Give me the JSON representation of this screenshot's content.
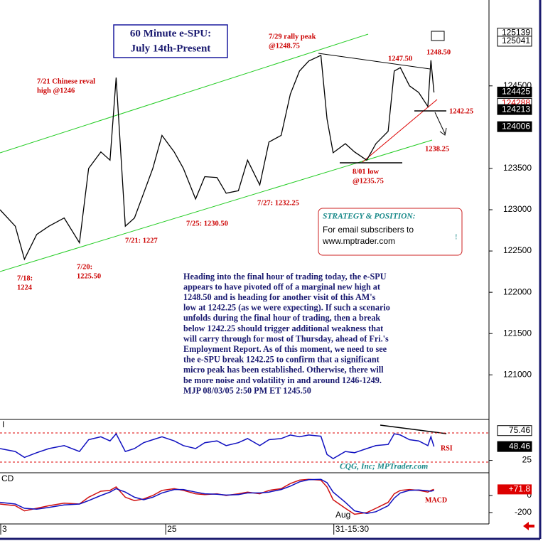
{
  "chart_data": [
    {
      "type": "line",
      "title": "60 Minute e-SPU:",
      "subtitle": "July 14th-Present",
      "x": [
        0,
        5,
        8,
        12,
        16,
        21,
        26,
        29,
        33,
        36,
        38,
        41,
        44,
        47,
        50,
        53,
        57,
        60,
        64,
        67,
        71,
        74,
        78,
        81,
        85,
        88,
        92,
        95,
        98,
        101,
        105,
        107,
        109,
        113,
        116,
        120,
        123,
        127,
        129,
        131,
        134,
        137,
        140,
        141,
        142
      ],
      "xlim": [
        0,
        160
      ],
      "series": [
        {
          "color": "#000000",
          "values": [
            123000,
            122800,
            122400,
            122700,
            122800,
            122900,
            122600,
            123500,
            123700,
            123600,
            124600,
            122800,
            122900,
            123200,
            123500,
            123900,
            123700,
            123500,
            123130,
            123400,
            123390,
            123200,
            123230,
            123600,
            123300,
            123820,
            123900,
            124400,
            124680,
            124800,
            124870,
            124100,
            123690,
            123800,
            123700,
            123600,
            123800,
            123950,
            124680,
            124720,
            124500,
            124420,
            124250,
            124810,
            124420
          ]
        }
      ],
      "ylim": [
        120460,
        125540
      ],
      "yticks": [
        121000,
        121500,
        122000,
        122500,
        123000,
        123500,
        124500
      ],
      "price_markers": [
        125139,
        125041,
        124425,
        124288,
        124213,
        124006
      ],
      "price_marker_colors": [
        "#000000",
        "#000000",
        "#ffffff",
        "#e00000",
        "#ffffff",
        "#ffffff"
      ],
      "annotations": [
        [
          "7/21 Chinese reval",
          "high @1246"
        ],
        [
          "7/29 rally peak",
          "@1248.75"
        ],
        [
          "1247.50"
        ],
        [
          "1248.50"
        ],
        [
          "1242.25"
        ],
        [
          "1238.25"
        ],
        [
          "8/01 low",
          "@1235.75"
        ],
        [
          "7/27: 1232.25"
        ],
        [
          "7/25: 1230.50"
        ],
        [
          "7/21: 1227"
        ],
        [
          "7/20:",
          "1225.50"
        ],
        [
          "7/18:",
          "1224"
        ]
      ],
      "commentary": [
        "Heading into the final hour of trading today, the e-SPU",
        "appears to have pivoted off of a marginal new high at",
        "1248.50 and is heading for another visit of this AM's",
        "low at 1242.25 (as we were expecting). If such a scenario",
        "unfolds during the final hour of trading, then a break",
        "below 1242.25 should trigger additional weakness that",
        "will carry through for most of Thursday, ahead of Fri.'s",
        "Employment Report. As of this moment, we need to see",
        "the e-SPU break 1242.25 to confirm that a significant",
        "micro peak has been established. Otherwise, there will",
        "be more noise and volatility in and around 1246-1249.",
        "MJP 08/03/05 2:50 PM ET 1245.50"
      ],
      "strategy": {
        "title": "STRATEGY & POSITION:",
        "lines": [
          "For email subscribers to",
          "www.mptrader.com"
        ],
        "mark": "!"
      }
    },
    {
      "type": "line",
      "panel_label": "I",
      "label": "RSI",
      "credit": "CQG, Inc; MPTrader.com",
      "x": [
        0,
        5,
        8,
        12,
        16,
        21,
        26,
        29,
        33,
        36,
        38,
        41,
        44,
        47,
        50,
        53,
        57,
        60,
        64,
        67,
        71,
        74,
        78,
        81,
        85,
        88,
        92,
        95,
        98,
        101,
        105,
        107,
        109,
        113,
        116,
        120,
        123,
        127,
        129,
        131,
        134,
        137,
        140,
        141,
        142
      ],
      "xlim": [
        0,
        160
      ],
      "series": [
        {
          "color": "#1010c0",
          "values": [
            45,
            40,
            30,
            38,
            45,
            50,
            40,
            60,
            65,
            58,
            70,
            40,
            45,
            55,
            60,
            65,
            58,
            50,
            45,
            55,
            58,
            50,
            55,
            62,
            50,
            60,
            62,
            68,
            65,
            68,
            66,
            35,
            28,
            40,
            38,
            45,
            50,
            52,
            70,
            68,
            60,
            58,
            50,
            65,
            48.46
          ]
        }
      ],
      "ylim": [
        10,
        92
      ],
      "yticks": [
        25
      ],
      "markers": [
        75.46,
        48.46
      ]
    },
    {
      "type": "line",
      "panel_label": "CD",
      "label": "MACD",
      "month_label": "Aug",
      "x": [
        0,
        5,
        8,
        12,
        16,
        21,
        26,
        29,
        33,
        36,
        38,
        41,
        44,
        47,
        50,
        53,
        57,
        60,
        64,
        67,
        71,
        74,
        78,
        81,
        85,
        88,
        92,
        95,
        98,
        101,
        105,
        107,
        109,
        113,
        116,
        120,
        123,
        127,
        129,
        131,
        134,
        137,
        140,
        141,
        142
      ],
      "xlim": [
        0,
        160
      ],
      "series": [
        {
          "color": "#d01010",
          "values": [
            -100,
            -120,
            -180,
            -150,
            -120,
            -90,
            -100,
            -20,
            50,
            60,
            100,
            -20,
            -60,
            -40,
            0,
            60,
            80,
            60,
            20,
            10,
            20,
            0,
            20,
            40,
            20,
            60,
            80,
            140,
            180,
            190,
            180,
            100,
            -50,
            -150,
            -220,
            -200,
            -150,
            -80,
            20,
            60,
            70,
            60,
            40,
            60,
            71.8
          ]
        },
        {
          "color": "#1010c0",
          "values": [
            -80,
            -100,
            -150,
            -160,
            -140,
            -110,
            -100,
            -60,
            0,
            40,
            80,
            40,
            -20,
            -50,
            -20,
            30,
            70,
            70,
            40,
            20,
            15,
            5,
            10,
            30,
            30,
            40,
            70,
            110,
            160,
            185,
            190,
            150,
            40,
            -80,
            -180,
            -210,
            -190,
            -120,
            -30,
            30,
            60,
            65,
            55,
            50,
            60
          ]
        }
      ],
      "ylim": [
        -317,
        242
      ],
      "yticks": [
        0,
        -200
      ],
      "markers": [
        {
          "value": 71.8,
          "label": "+71.8"
        }
      ],
      "xticks": [
        {
          "value": 0,
          "label": "3"
        },
        {
          "value": 54,
          "label": "25"
        },
        {
          "value": 109,
          "label": "31-15:30"
        }
      ]
    }
  ]
}
